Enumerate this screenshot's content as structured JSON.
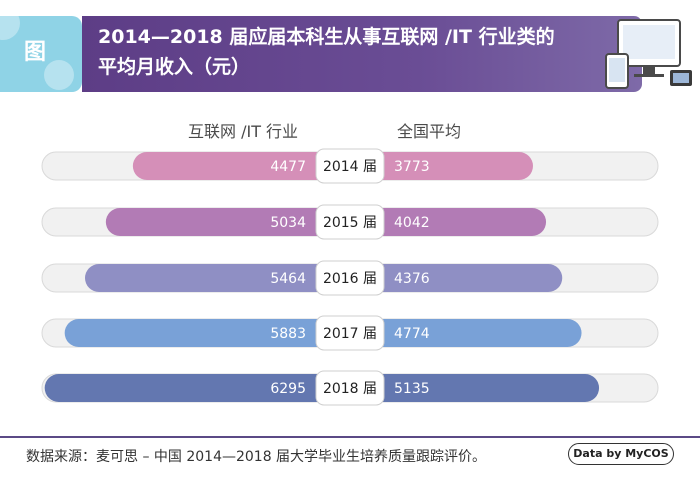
{
  "header": {
    "tab_label": "图",
    "title_line1": "2014—2018 届应届本科生从事互联网 /IT 行业类的",
    "title_line2": "平均月收入（元）"
  },
  "chart_data": {
    "type": "bar",
    "orientation": "horizontal-diverging",
    "categories": [
      "2014 届",
      "2015 届",
      "2016 届",
      "2017 届",
      "2018 届"
    ],
    "series": [
      {
        "name": "互联网 /IT 行业",
        "values": [
          4477,
          5034,
          5464,
          5883,
          6295
        ]
      },
      {
        "name": "全国平均",
        "values": [
          3773,
          4042,
          4376,
          4774,
          5135
        ]
      }
    ],
    "xlim": [
      0,
      7000
    ],
    "colors": [
      "#d58fb8",
      "#b27bb5",
      "#8f8fc4",
      "#79a1d7",
      "#6377b0"
    ],
    "legend": "top",
    "grid": false
  },
  "footer": {
    "source": "数据来源：麦可思 – 中国 2014—2018 届大学毕业生培养质量跟踪评价。",
    "badge": "Data by MyCOS"
  }
}
